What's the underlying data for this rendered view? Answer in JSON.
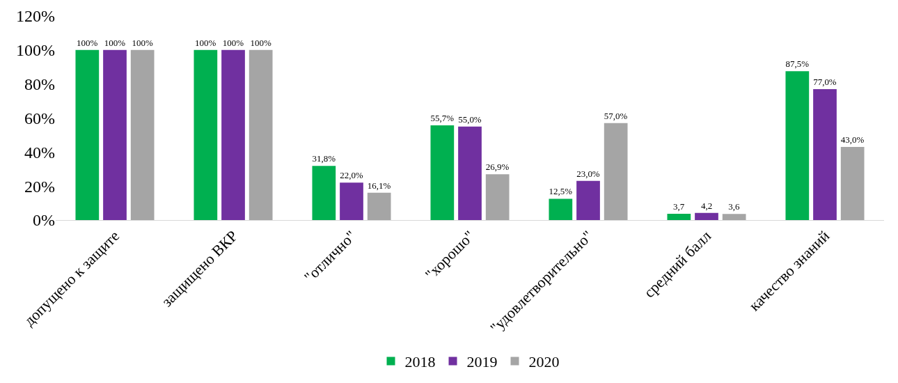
{
  "chart_data": {
    "type": "bar",
    "categories": [
      "допущено к защите",
      "защищено ВКР",
      "\"отлично\"",
      "\"хорошо\"",
      "\"удовлетворительно\"",
      "средний балл",
      "качество знаний"
    ],
    "series": [
      {
        "name": "2018",
        "color": "#00b050",
        "values": [
          100,
          100,
          31.8,
          55.7,
          12.5,
          3.7,
          87.5
        ],
        "value_labels": [
          "100%",
          "100%",
          "31,8%",
          "55,7%",
          "12,5%",
          "3,7",
          "87,5%"
        ]
      },
      {
        "name": "2019",
        "color": "#7030a0",
        "values": [
          100,
          100,
          22.0,
          55.0,
          23.0,
          4.2,
          77.0
        ],
        "value_labels": [
          "100%",
          "100%",
          "22,0%",
          "55,0%",
          "23,0%",
          "4,2",
          "77,0%"
        ]
      },
      {
        "name": "2020",
        "color": "#a5a5a5",
        "values": [
          100,
          100,
          16.1,
          26.9,
          57.0,
          3.6,
          43.0
        ],
        "value_labels": [
          "100%",
          "100%",
          "16,1%",
          "26,9%",
          "57,0%",
          "3,6",
          "43,0%"
        ]
      }
    ],
    "ylim": [
      0,
      120
    ],
    "yticks": [
      {
        "value": 0,
        "label": "0%"
      },
      {
        "value": 20,
        "label": "20%"
      },
      {
        "value": 40,
        "label": "40%"
      },
      {
        "value": 60,
        "label": "60%"
      },
      {
        "value": 80,
        "label": "80%"
      },
      {
        "value": 100,
        "label": "100%"
      },
      {
        "value": 120,
        "label": "120%"
      }
    ],
    "legend": "bottom"
  }
}
